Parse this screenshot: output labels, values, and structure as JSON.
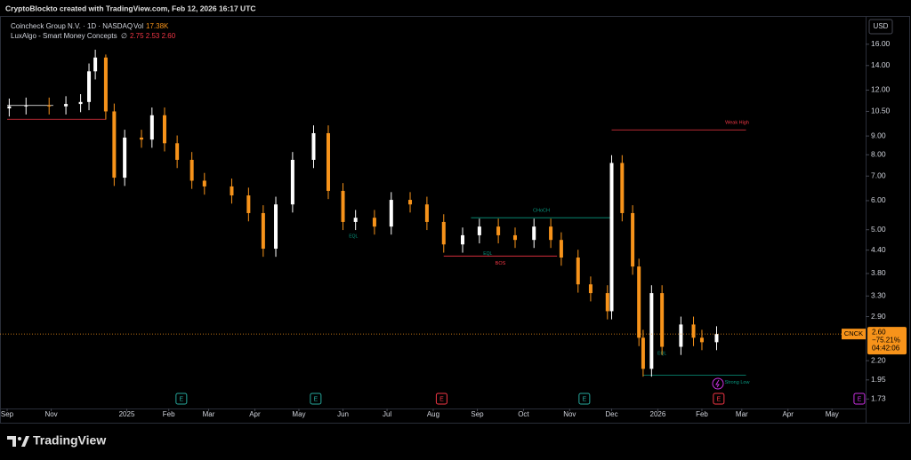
{
  "page": {
    "attribution": "CryptoBlockto created with TradingView.com, Feb 12, 2026 16:17 UTC",
    "brand": "TradingView"
  },
  "chart_data": {
    "type": "candlestick",
    "title": "Coincheck Group N.V. · 1D · NASDAQ",
    "volume_label": "Vol",
    "volume_value": "17.38K",
    "indicator": "LuxAlgo - Smart Money Concepts",
    "indicator_symbol": "∅",
    "indicator_values": "2.75 2.53 2.60",
    "currency": "USD",
    "log_scale": true,
    "grid": false,
    "up_color": "#ffffff",
    "down_color": "#f7931a",
    "candles": {
      "x": [
        1,
        9,
        20,
        28,
        35,
        39,
        42,
        47,
        51,
        56,
        64,
        69,
        75,
        81,
        88,
        94,
        107,
        115,
        122,
        128,
        136,
        146,
        153,
        160,
        166,
        175,
        183,
        192,
        200,
        208,
        217,
        225,
        234,
        242,
        251,
        259,
        264,
        272,
        278,
        286,
        288,
        293,
        298,
        301,
        303,
        307,
        312,
        321,
        327,
        331,
        338
      ],
      "open": [
        10.7,
        10.84,
        10.9,
        10.84,
        11.0,
        11.14,
        13.5,
        14.72,
        10.5,
        6.93,
        8.91,
        8.8,
        10.25,
        8.6,
        7.75,
        6.8,
        6.56,
        6.2,
        5.55,
        4.44,
        5.86,
        7.75,
        9.16,
        6.38,
        5.25,
        5.39,
        5.1,
        6.03,
        5.86,
        5.25,
        4.56,
        4.83,
        5.1,
        4.83,
        4.69,
        5.1,
        4.69,
        4.2,
        3.55,
        3.36,
        3.0,
        7.6,
        5.55,
        3.97,
        2.54,
        2.09,
        3.36,
        2.4,
        2.76,
        2.54,
        2.47
      ],
      "high": [
        11.38,
        11.45,
        11.45,
        11.55,
        11.7,
        14.18,
        15.46,
        15.0,
        11.03,
        9.36,
        9.36,
        10.76,
        10.76,
        9.03,
        8.14,
        7.14,
        6.89,
        6.51,
        5.83,
        6.15,
        8.14,
        9.62,
        9.62,
        6.7,
        5.66,
        5.66,
        6.33,
        6.33,
        6.15,
        5.51,
        5.07,
        5.36,
        5.36,
        5.07,
        5.36,
        5.36,
        4.92,
        4.41,
        3.73,
        3.53,
        7.98,
        7.98,
        5.83,
        4.17,
        2.67,
        3.53,
        3.53,
        2.9,
        2.9,
        2.67,
        2.73
      ],
      "low": [
        10.17,
        10.3,
        10.3,
        10.3,
        10.45,
        10.58,
        12.83,
        9.98,
        6.58,
        6.58,
        8.36,
        8.36,
        8.17,
        7.36,
        6.46,
        6.23,
        5.89,
        5.27,
        4.22,
        4.22,
        5.57,
        7.36,
        6.06,
        4.99,
        4.99,
        4.85,
        4.85,
        5.57,
        4.99,
        4.33,
        4.33,
        4.59,
        4.59,
        4.46,
        4.46,
        4.46,
        3.99,
        3.37,
        3.19,
        2.85,
        2.85,
        5.27,
        3.77,
        2.41,
        1.99,
        1.99,
        2.28,
        2.28,
        2.41,
        2.35,
        2.35
      ],
      "close": [
        10.84,
        10.9,
        10.84,
        11.0,
        11.14,
        13.5,
        14.72,
        10.5,
        6.93,
        8.91,
        8.8,
        10.25,
        8.6,
        7.75,
        6.8,
        6.56,
        6.2,
        5.55,
        4.44,
        5.86,
        7.75,
        9.16,
        6.38,
        5.25,
        5.39,
        5.1,
        6.03,
        5.86,
        5.25,
        4.56,
        4.83,
        5.1,
        4.83,
        4.69,
        5.1,
        4.69,
        4.2,
        3.55,
        3.36,
        3.0,
        7.6,
        5.55,
        3.97,
        2.54,
        2.09,
        3.36,
        2.4,
        2.76,
        2.54,
        2.47,
        2.6
      ]
    },
    "levels": [
      {
        "value": 10.9,
        "x": [
          0,
          22
        ],
        "color": "#ffffff"
      },
      {
        "value": 10.0,
        "x": [
          0,
          47
        ],
        "color": "#f23645"
      },
      {
        "label": "CHoCH",
        "value": 5.39,
        "x": [
          221,
          288
        ],
        "color": "#089981"
      },
      {
        "label": "BOS",
        "value": 4.24,
        "x": [
          208,
          262
        ],
        "color": "#f23645"
      },
      {
        "label": "Weak High",
        "value": 9.35,
        "x": [
          288,
          352
        ],
        "color": "#f23645"
      },
      {
        "label": "Strong Low",
        "value": 2.01,
        "x": [
          303,
          352
        ],
        "color": "#089981"
      }
    ],
    "annotations": [
      {
        "text": "EQL",
        "x": 165,
        "y": 4.8
      },
      {
        "text": "EQL",
        "x": 229,
        "y": 4.3
      },
      {
        "text": "EQL",
        "x": 312,
        "y": 2.3
      }
    ],
    "earnings": [
      {
        "label": "E",
        "x": 83,
        "color": "#26a69a"
      },
      {
        "label": "E",
        "x": 147,
        "color": "#26a69a"
      },
      {
        "label": "E",
        "x": 207,
        "color": "#f23645"
      },
      {
        "label": "E",
        "x": 275,
        "color": "#26a69a"
      },
      {
        "label": "E",
        "x": 339,
        "color": "#f23645"
      },
      {
        "label": "E",
        "x": 406,
        "color": "#c730e0"
      }
    ],
    "price_tag": {
      "symbol": "CNCK",
      "price": "2.60",
      "change": "−75.21%",
      "countdown": "04:42:06"
    },
    "xlim": [
      -3.4,
      409
    ],
    "xticks": [
      {
        "value": 0,
        "label": "Sep"
      },
      {
        "value": 21,
        "label": "Nov"
      },
      {
        "value": 57,
        "label": "2025"
      },
      {
        "value": 77,
        "label": "Feb"
      },
      {
        "value": 96,
        "label": "Mar"
      },
      {
        "value": 118,
        "label": "Apr"
      },
      {
        "value": 139,
        "label": "May"
      },
      {
        "value": 160,
        "label": "Jun"
      },
      {
        "value": 181,
        "label": "Jul"
      },
      {
        "value": 203,
        "label": "Aug"
      },
      {
        "value": 224,
        "label": "Sep"
      },
      {
        "value": 246,
        "label": "Oct"
      },
      {
        "value": 268,
        "label": "Nov"
      },
      {
        "value": 288,
        "label": "Dec"
      },
      {
        "value": 310,
        "label": "2026"
      },
      {
        "value": 331,
        "label": "Feb"
      },
      {
        "value": 350,
        "label": "Mar"
      },
      {
        "value": 372,
        "label": "Apr"
      },
      {
        "value": 393,
        "label": "May"
      }
    ],
    "ylim": [
      1.63,
      19.1
    ],
    "yticks": [
      {
        "value": 1.73,
        "label": "1.73"
      },
      {
        "value": 1.95,
        "label": "1.95"
      },
      {
        "value": 2.2,
        "label": "2.20"
      },
      {
        "value": 2.9,
        "label": "2.90"
      },
      {
        "value": 3.3,
        "label": "3.30"
      },
      {
        "value": 3.8,
        "label": "3.80"
      },
      {
        "value": 4.4,
        "label": "4.40"
      },
      {
        "value": 5,
        "label": "5.00"
      },
      {
        "value": 6,
        "label": "6.00"
      },
      {
        "value": 7,
        "label": "7.00"
      },
      {
        "value": 8,
        "label": "8.00"
      },
      {
        "value": 9,
        "label": "9.00"
      },
      {
        "value": 10.5,
        "label": "10.50"
      },
      {
        "value": 12,
        "label": "12.00"
      },
      {
        "value": 14,
        "label": "14.00"
      },
      {
        "value": 16,
        "label": "16.00"
      }
    ]
  }
}
